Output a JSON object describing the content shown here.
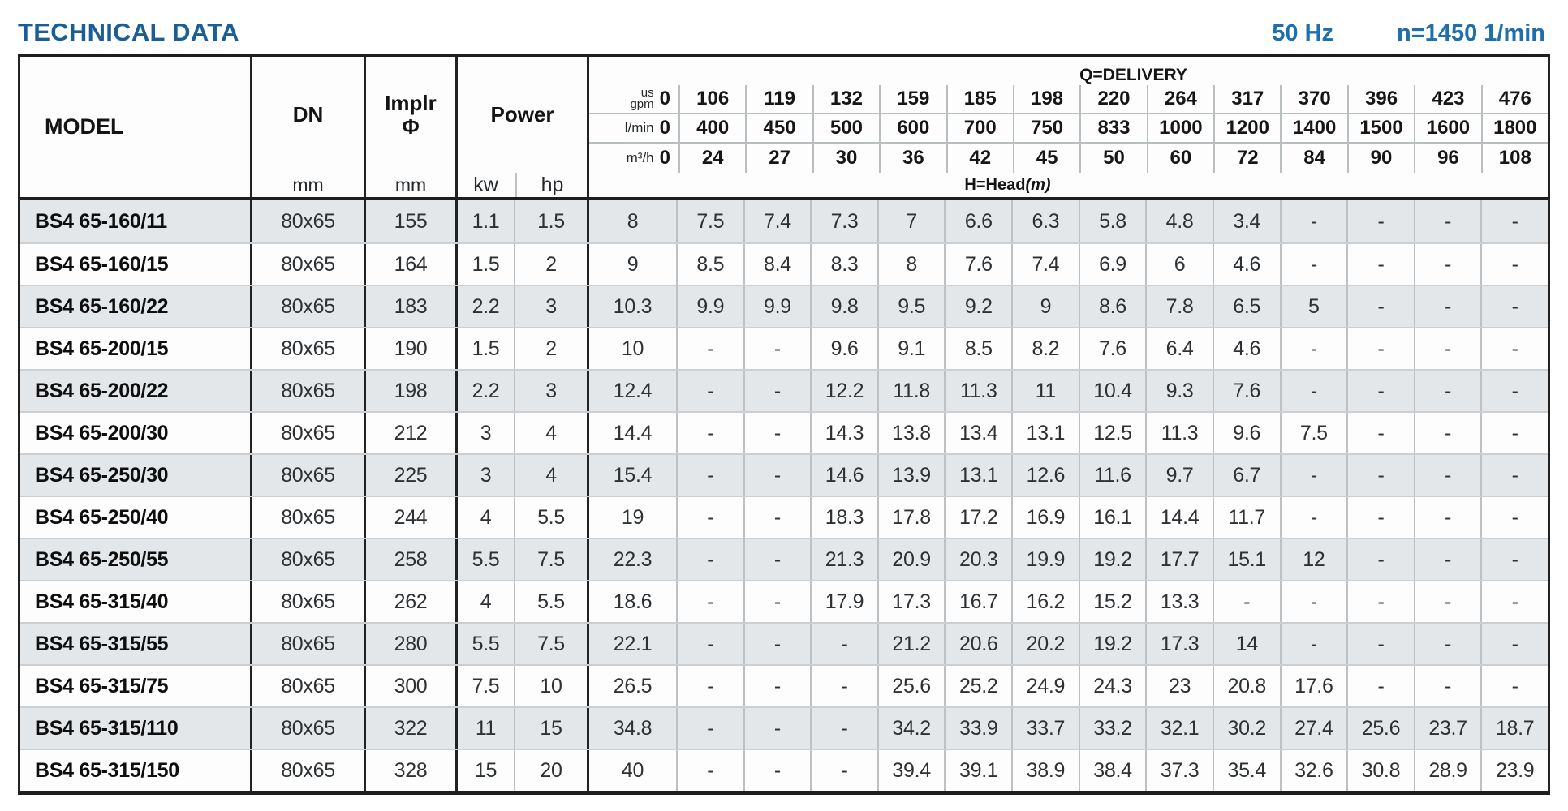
{
  "page": {
    "title": "TECHNICAL DATA",
    "frequency": "50 Hz",
    "speed": "n=1450 1/min"
  },
  "colors": {
    "title_blue": "#1b5e97",
    "spec_blue": "#1f6fad",
    "row_shade": "#e3e7e9",
    "border_dark": "#1e1e1e",
    "border_light": "#b9bec1"
  },
  "table": {
    "headers": {
      "model": "MODEL",
      "dn": "DN",
      "dn_unit": "mm",
      "impeller": "Implr",
      "impeller_symbol": "Φ",
      "impeller_unit": "mm",
      "power": "Power",
      "power_kw": "kw",
      "power_hp": "hp",
      "delivery_title": "Q=DELIVERY",
      "head_label": "H=Head",
      "head_unit": "(m)"
    },
    "flow_rows": [
      {
        "id": "us-gpm",
        "label_lines": [
          "us",
          "gpm"
        ],
        "values": [
          "0",
          "106",
          "119",
          "132",
          "159",
          "185",
          "198",
          "220",
          "264",
          "317",
          "370",
          "396",
          "423",
          "476"
        ]
      },
      {
        "id": "l-min",
        "label_lines": [
          "l/min"
        ],
        "values": [
          "0",
          "400",
          "450",
          "500",
          "600",
          "700",
          "750",
          "833",
          "1000",
          "1200",
          "1400",
          "1500",
          "1600",
          "1800"
        ]
      },
      {
        "id": "m3-h",
        "label_lines": [
          "m³/h"
        ],
        "values": [
          "0",
          "24",
          "27",
          "30",
          "36",
          "42",
          "45",
          "50",
          "60",
          "72",
          "84",
          "90",
          "96",
          "108"
        ]
      }
    ],
    "rows": [
      {
        "model": "BS4 65-160/11",
        "dn": "80x65",
        "impeller": "155",
        "kw": "1.1",
        "hp": "1.5",
        "head": [
          "8",
          "7.5",
          "7.4",
          "7.3",
          "7",
          "6.6",
          "6.3",
          "5.8",
          "4.8",
          "3.4",
          "-",
          "-",
          "-",
          "-"
        ]
      },
      {
        "model": "BS4 65-160/15",
        "dn": "80x65",
        "impeller": "164",
        "kw": "1.5",
        "hp": "2",
        "head": [
          "9",
          "8.5",
          "8.4",
          "8.3",
          "8",
          "7.6",
          "7.4",
          "6.9",
          "6",
          "4.6",
          "-",
          "-",
          "-",
          "-"
        ]
      },
      {
        "model": "BS4 65-160/22",
        "dn": "80x65",
        "impeller": "183",
        "kw": "2.2",
        "hp": "3",
        "head": [
          "10.3",
          "9.9",
          "9.9",
          "9.8",
          "9.5",
          "9.2",
          "9",
          "8.6",
          "7.8",
          "6.5",
          "5",
          "-",
          "-",
          "-"
        ]
      },
      {
        "model": "BS4 65-200/15",
        "dn": "80x65",
        "impeller": "190",
        "kw": "1.5",
        "hp": "2",
        "head": [
          "10",
          "-",
          "-",
          "9.6",
          "9.1",
          "8.5",
          "8.2",
          "7.6",
          "6.4",
          "4.6",
          "-",
          "-",
          "-",
          "-"
        ]
      },
      {
        "model": "BS4 65-200/22",
        "dn": "80x65",
        "impeller": "198",
        "kw": "2.2",
        "hp": "3",
        "head": [
          "12.4",
          "-",
          "-",
          "12.2",
          "11.8",
          "11.3",
          "11",
          "10.4",
          "9.3",
          "7.6",
          "-",
          "-",
          "-",
          "-"
        ]
      },
      {
        "model": "BS4 65-200/30",
        "dn": "80x65",
        "impeller": "212",
        "kw": "3",
        "hp": "4",
        "head": [
          "14.4",
          "-",
          "-",
          "14.3",
          "13.8",
          "13.4",
          "13.1",
          "12.5",
          "11.3",
          "9.6",
          "7.5",
          "-",
          "-",
          "-"
        ]
      },
      {
        "model": "BS4 65-250/30",
        "dn": "80x65",
        "impeller": "225",
        "kw": "3",
        "hp": "4",
        "head": [
          "15.4",
          "-",
          "-",
          "14.6",
          "13.9",
          "13.1",
          "12.6",
          "11.6",
          "9.7",
          "6.7",
          "-",
          "-",
          "-",
          "-"
        ]
      },
      {
        "model": "BS4 65-250/40",
        "dn": "80x65",
        "impeller": "244",
        "kw": "4",
        "hp": "5.5",
        "head": [
          "19",
          "-",
          "-",
          "18.3",
          "17.8",
          "17.2",
          "16.9",
          "16.1",
          "14.4",
          "11.7",
          "-",
          "-",
          "-",
          "-"
        ]
      },
      {
        "model": "BS4 65-250/55",
        "dn": "80x65",
        "impeller": "258",
        "kw": "5.5",
        "hp": "7.5",
        "head": [
          "22.3",
          "-",
          "-",
          "21.3",
          "20.9",
          "20.3",
          "19.9",
          "19.2",
          "17.7",
          "15.1",
          "12",
          "-",
          "-",
          "-"
        ]
      },
      {
        "model": "BS4 65-315/40",
        "dn": "80x65",
        "impeller": "262",
        "kw": "4",
        "hp": "5.5",
        "head": [
          "18.6",
          "-",
          "-",
          "17.9",
          "17.3",
          "16.7",
          "16.2",
          "15.2",
          "13.3",
          "-",
          "-",
          "-",
          "-",
          "-"
        ]
      },
      {
        "model": "BS4 65-315/55",
        "dn": "80x65",
        "impeller": "280",
        "kw": "5.5",
        "hp": "7.5",
        "head": [
          "22.1",
          "-",
          "-",
          "-",
          "21.2",
          "20.6",
          "20.2",
          "19.2",
          "17.3",
          "14",
          "-",
          "-",
          "-",
          "-"
        ]
      },
      {
        "model": "BS4 65-315/75",
        "dn": "80x65",
        "impeller": "300",
        "kw": "7.5",
        "hp": "10",
        "head": [
          "26.5",
          "-",
          "-",
          "-",
          "25.6",
          "25.2",
          "24.9",
          "24.3",
          "23",
          "20.8",
          "17.6",
          "-",
          "-",
          "-"
        ]
      },
      {
        "model": "BS4 65-315/110",
        "dn": "80x65",
        "impeller": "322",
        "kw": "11",
        "hp": "15",
        "head": [
          "34.8",
          "-",
          "-",
          "-",
          "34.2",
          "33.9",
          "33.7",
          "33.2",
          "32.1",
          "30.2",
          "27.4",
          "25.6",
          "23.7",
          "18.7"
        ]
      },
      {
        "model": "BS4 65-315/150",
        "dn": "80x65",
        "impeller": "328",
        "kw": "15",
        "hp": "20",
        "head": [
          "40",
          "-",
          "-",
          "-",
          "39.4",
          "39.1",
          "38.9",
          "38.4",
          "37.3",
          "35.4",
          "32.6",
          "30.8",
          "28.9",
          "23.9"
        ]
      }
    ]
  }
}
